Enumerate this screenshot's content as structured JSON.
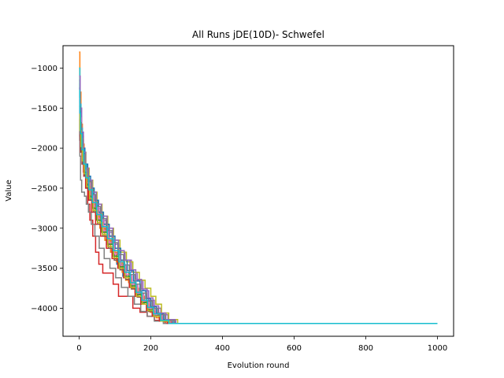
{
  "chart_data": {
    "type": "line",
    "title": "All Runs jDE(10D)- Schwefel",
    "xlabel": "Evolution round",
    "ylabel": "Value",
    "xlim": [
      -45,
      1045
    ],
    "ylim": [
      -4350,
      -720
    ],
    "xticks": [
      0,
      200,
      400,
      600,
      800,
      1000
    ],
    "xtick_labels": [
      "0",
      "200",
      "400",
      "600",
      "800",
      "1000"
    ],
    "yticks": [
      -4000,
      -3500,
      -3000,
      -2500,
      -2000,
      -1500,
      -1000
    ],
    "ytick_labels": [
      "−4000",
      "−3500",
      "−3000",
      "−2500",
      "−2000",
      "−1500",
      "−1000"
    ],
    "grid": false,
    "legend": "none",
    "plateau_value": -4189.8,
    "series_colors": [
      "#1f77b4",
      "#ff7f0e",
      "#2ca02c",
      "#d62728",
      "#9467bd",
      "#8c564b",
      "#e377c2",
      "#7f7f7f",
      "#bcbd22",
      "#17becf"
    ],
    "series": [
      {
        "x": [
          0,
          2,
          5,
          8,
          12,
          18,
          25,
          34,
          45,
          58,
          72,
          88,
          105,
          122,
          140,
          158,
          175,
          190,
          205,
          225,
          250,
          1000
        ],
        "values": [
          -1300,
          -1500,
          -1800,
          -2000,
          -2150,
          -2350,
          -2500,
          -2650,
          -2800,
          -3000,
          -3150,
          -3300,
          -3450,
          -3600,
          -3700,
          -3800,
          -3900,
          -4000,
          -4080,
          -4150,
          -4189.8,
          -4189.8
        ]
      },
      {
        "x": [
          0,
          2,
          5,
          9,
          14,
          20,
          28,
          38,
          50,
          63,
          78,
          95,
          112,
          130,
          148,
          166,
          182,
          198,
          215,
          235,
          260,
          1000
        ],
        "values": [
          -800,
          -1300,
          -1700,
          -1950,
          -2200,
          -2400,
          -2550,
          -2700,
          -2850,
          -3000,
          -3200,
          -3350,
          -3500,
          -3650,
          -3750,
          -3850,
          -3950,
          -4050,
          -4120,
          -4170,
          -4189.8,
          -4189.8
        ]
      },
      {
        "x": [
          0,
          3,
          6,
          10,
          15,
          22,
          30,
          40,
          52,
          66,
          80,
          96,
          112,
          128,
          146,
          164,
          180,
          196,
          212,
          232,
          255,
          1000
        ],
        "values": [
          -1400,
          -1650,
          -1850,
          -2050,
          -2250,
          -2400,
          -2550,
          -2700,
          -2900,
          -3050,
          -3200,
          -3350,
          -3500,
          -3600,
          -3720,
          -3820,
          -3920,
          -4000,
          -4080,
          -4150,
          -4189.8,
          -4189.8
        ]
      },
      {
        "x": [
          0,
          2,
          4,
          8,
          12,
          18,
          24,
          30,
          38,
          46,
          55,
          66,
          80,
          95,
          110,
          130,
          150,
          170,
          190,
          210,
          240,
          1000
        ],
        "values": [
          -1150,
          -1550,
          -1750,
          -2100,
          -2300,
          -2500,
          -2700,
          -2900,
          -3100,
          -3300,
          -3450,
          -3560,
          -3560,
          -3700,
          -3850,
          -3850,
          -4000,
          -4050,
          -4100,
          -4150,
          -4189.8,
          -4189.8
        ]
      },
      {
        "x": [
          0,
          3,
          7,
          12,
          18,
          26,
          35,
          46,
          60,
          75,
          92,
          110,
          128,
          146,
          162,
          178,
          194,
          210,
          228,
          248,
          270,
          1000
        ],
        "values": [
          -1500,
          -1700,
          -1900,
          -2100,
          -2300,
          -2450,
          -2600,
          -2750,
          -2900,
          -3050,
          -3200,
          -3300,
          -3400,
          -3550,
          -3650,
          -3780,
          -3900,
          -4000,
          -4080,
          -4150,
          -4189.8,
          -4189.8
        ]
      },
      {
        "x": [
          0,
          2,
          5,
          10,
          15,
          22,
          30,
          40,
          52,
          65,
          80,
          95,
          110,
          126,
          142,
          158,
          174,
          190,
          206,
          226,
          250,
          1000
        ],
        "values": [
          -1200,
          -1600,
          -1850,
          -2050,
          -2200,
          -2400,
          -2500,
          -2650,
          -2800,
          -2950,
          -3100,
          -3250,
          -3400,
          -3550,
          -3680,
          -3800,
          -3900,
          -3990,
          -4060,
          -4140,
          -4189.8,
          -4189.8
        ]
      },
      {
        "x": [
          0,
          3,
          6,
          11,
          17,
          24,
          33,
          44,
          56,
          70,
          85,
          100,
          116,
          132,
          148,
          164,
          180,
          196,
          214,
          234,
          258,
          1000
        ],
        "values": [
          -1600,
          -1800,
          -2000,
          -2150,
          -2300,
          -2450,
          -2600,
          -2750,
          -2900,
          -3050,
          -3200,
          -3350,
          -3480,
          -3600,
          -3720,
          -3830,
          -3930,
          -4020,
          -4090,
          -4160,
          -4189.8,
          -4189.8
        ]
      },
      {
        "x": [
          0,
          2,
          4,
          7,
          10,
          15,
          20,
          26,
          34,
          44,
          56,
          70,
          86,
          102,
          118,
          136,
          154,
          172,
          190,
          210,
          235,
          1000
        ],
        "values": [
          -1700,
          -2100,
          -2400,
          -2550,
          -2550,
          -2600,
          -2700,
          -2800,
          -2950,
          -3100,
          -3250,
          -3380,
          -3500,
          -3620,
          -3740,
          -3850,
          -3950,
          -4040,
          -4100,
          -4160,
          -4189.8,
          -4189.8
        ]
      },
      {
        "x": [
          0,
          3,
          7,
          12,
          19,
          28,
          38,
          50,
          64,
          80,
          96,
          114,
          132,
          150,
          168,
          184,
          200,
          214,
          230,
          250,
          275,
          1000
        ],
        "values": [
          -1350,
          -1600,
          -1850,
          -2050,
          -2250,
          -2400,
          -2550,
          -2700,
          -2850,
          -3000,
          -3150,
          -3300,
          -3420,
          -3550,
          -3650,
          -3750,
          -3850,
          -3950,
          -4060,
          -4140,
          -4189.8,
          -4189.8
        ]
      },
      {
        "x": [
          0,
          2,
          5,
          9,
          14,
          20,
          28,
          38,
          50,
          64,
          80,
          96,
          112,
          128,
          144,
          160,
          176,
          192,
          208,
          228,
          252,
          1000
        ],
        "values": [
          -1000,
          -1450,
          -1750,
          -2000,
          -2200,
          -2400,
          -2550,
          -2700,
          -2850,
          -3000,
          -3150,
          -3300,
          -3450,
          -3580,
          -3700,
          -3810,
          -3910,
          -4000,
          -4080,
          -4150,
          -4189.8,
          -4189.8
        ]
      },
      {
        "x": [
          0,
          2,
          6,
          10,
          16,
          24,
          32,
          42,
          54,
          68,
          84,
          100,
          116,
          134,
          152,
          170,
          186,
          200,
          216,
          236,
          262,
          1000
        ],
        "values": [
          -1250,
          -1550,
          -1800,
          -2000,
          -2200,
          -2350,
          -2500,
          -2650,
          -2800,
          -2950,
          -3100,
          -3250,
          -3400,
          -3530,
          -3660,
          -3780,
          -3880,
          -3980,
          -4070,
          -4150,
          -4189.8,
          -4189.8
        ]
      },
      {
        "x": [
          0,
          3,
          6,
          10,
          15,
          21,
          28,
          36,
          46,
          58,
          72,
          88,
          104,
          120,
          138,
          156,
          172,
          188,
          204,
          224,
          248,
          1000
        ],
        "values": [
          -1450,
          -1700,
          -1900,
          -2100,
          -2250,
          -2400,
          -2550,
          -2700,
          -2850,
          -3000,
          -3150,
          -3300,
          -3420,
          -3550,
          -3680,
          -3800,
          -3900,
          -4000,
          -4080,
          -4150,
          -4189.8,
          -4189.8
        ]
      },
      {
        "x": [
          0,
          2,
          5,
          9,
          14,
          20,
          27,
          36,
          48,
          62,
          78,
          94,
          110,
          126,
          142,
          158,
          174,
          190,
          206,
          226,
          250,
          1000
        ],
        "values": [
          -1550,
          -1750,
          -1950,
          -2150,
          -2300,
          -2450,
          -2600,
          -2750,
          -2900,
          -3050,
          -3200,
          -3350,
          -3480,
          -3600,
          -3720,
          -3830,
          -3930,
          -4020,
          -4090,
          -4160,
          -4189.8,
          -4189.8
        ]
      },
      {
        "x": [
          0,
          2,
          4,
          8,
          13,
          19,
          26,
          35,
          46,
          60,
          76,
          92,
          108,
          124,
          140,
          156,
          172,
          188,
          204,
          224,
          246,
          1000
        ],
        "values": [
          -1650,
          -1850,
          -2050,
          -2200,
          -2350,
          -2500,
          -2650,
          -2800,
          -2950,
          -3100,
          -3250,
          -3380,
          -3500,
          -3620,
          -3740,
          -3850,
          -3950,
          -4030,
          -4100,
          -4160,
          -4189.8,
          -4189.8
        ]
      },
      {
        "x": [
          0,
          3,
          7,
          12,
          18,
          26,
          36,
          48,
          62,
          78,
          94,
          110,
          126,
          142,
          158,
          174,
          190,
          206,
          222,
          242,
          268,
          1000
        ],
        "values": [
          -1100,
          -1500,
          -1800,
          -2050,
          -2250,
          -2400,
          -2550,
          -2700,
          -2850,
          -3000,
          -3150,
          -3280,
          -3400,
          -3520,
          -3640,
          -3760,
          -3870,
          -3970,
          -4060,
          -4140,
          -4189.8,
          -4189.8
        ]
      },
      {
        "x": [
          0,
          2,
          5,
          9,
          15,
          22,
          30,
          40,
          52,
          66,
          82,
          98,
          114,
          130,
          146,
          162,
          178,
          194,
          210,
          230,
          256,
          1000
        ],
        "values": [
          -1750,
          -1900,
          -2050,
          -2200,
          -2350,
          -2500,
          -2650,
          -2800,
          -2950,
          -3100,
          -3250,
          -3400,
          -3520,
          -3640,
          -3760,
          -3860,
          -3950,
          -4040,
          -4100,
          -4160,
          -4189.8,
          -4189.8
        ]
      },
      {
        "x": [
          0,
          2,
          5,
          10,
          16,
          23,
          31,
          41,
          53,
          67,
          82,
          98,
          114,
          130,
          146,
          162,
          178,
          194,
          210,
          230,
          254,
          1000
        ],
        "values": [
          -1380,
          -1620,
          -1880,
          -2080,
          -2260,
          -2420,
          -2580,
          -2730,
          -2880,
          -3030,
          -3180,
          -3320,
          -3460,
          -3580,
          -3700,
          -3810,
          -3910,
          -4000,
          -4080,
          -4150,
          -4189.8,
          -4189.8
        ]
      },
      {
        "x": [
          0,
          3,
          6,
          10,
          16,
          24,
          34,
          46,
          60,
          76,
          92,
          108,
          124,
          140,
          156,
          172,
          188,
          204,
          220,
          240,
          266,
          1000
        ],
        "values": [
          -1480,
          -1680,
          -1880,
          -2080,
          -2260,
          -2420,
          -2580,
          -2730,
          -2880,
          -3030,
          -3180,
          -3330,
          -3460,
          -3580,
          -3700,
          -3810,
          -3910,
          -4000,
          -4080,
          -4150,
          -4189.8,
          -4189.8
        ]
      },
      {
        "x": [
          0,
          2,
          5,
          9,
          14,
          21,
          29,
          39,
          51,
          65,
          80,
          96,
          112,
          128,
          144,
          160,
          176,
          192,
          208,
          228,
          252,
          1000
        ],
        "values": [
          -1580,
          -1780,
          -1980,
          -2160,
          -2320,
          -2480,
          -2630,
          -2780,
          -2930,
          -3080,
          -3230,
          -3370,
          -3500,
          -3620,
          -3740,
          -3850,
          -3950,
          -4030,
          -4100,
          -4160,
          -4189.8,
          -4189.8
        ]
      },
      {
        "x": [
          0,
          2,
          4,
          8,
          13,
          19,
          27,
          37,
          49,
          63,
          79,
          95,
          111,
          127,
          143,
          159,
          175,
          191,
          207,
          227,
          250,
          1000
        ],
        "values": [
          -1280,
          -1560,
          -1820,
          -2020,
          -2200,
          -2370,
          -2520,
          -2680,
          -2830,
          -2980,
          -3130,
          -3280,
          -3420,
          -3550,
          -3680,
          -3800,
          -3900,
          -3990,
          -4070,
          -4150,
          -4189.8,
          -4189.8
        ]
      }
    ]
  }
}
